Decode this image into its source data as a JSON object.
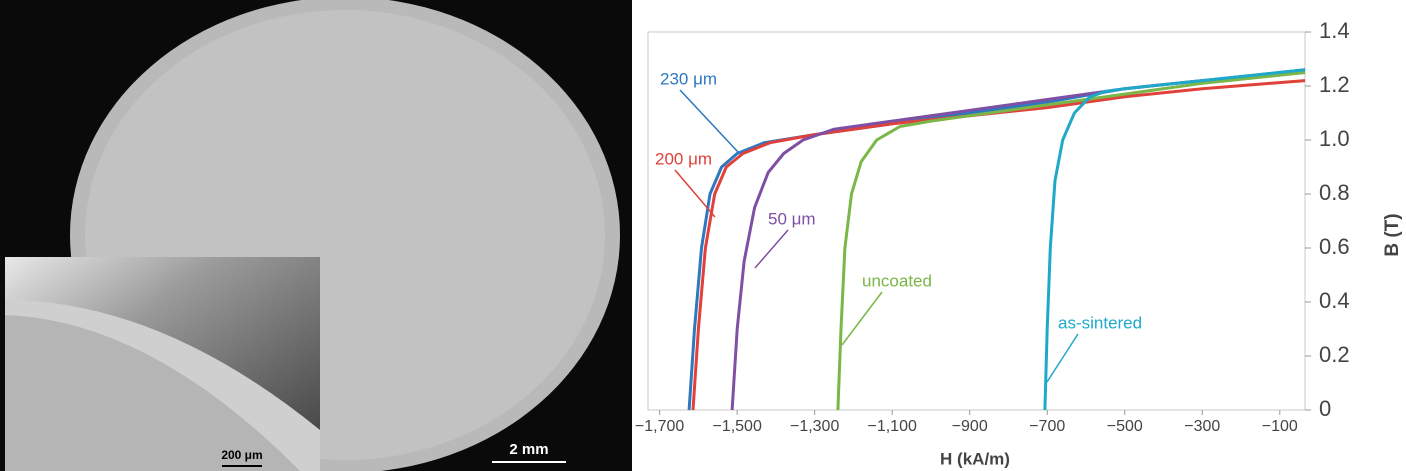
{
  "micrograph": {
    "scale_bar": "2 mm",
    "inset_scale_bar": "200 μm"
  },
  "chart_data": {
    "type": "line",
    "x_label": "H (kA/m)",
    "y_label": "B (T)",
    "xlim": [
      -1730,
      -35
    ],
    "ylim": [
      0,
      1.4
    ],
    "xticks": [
      {
        "value": -1700,
        "label": "−1,700"
      },
      {
        "value": -1500,
        "label": "−1,500"
      },
      {
        "value": -1300,
        "label": "−1,300"
      },
      {
        "value": -1100,
        "label": "−1,100"
      },
      {
        "value": -900,
        "label": "−900"
      },
      {
        "value": -700,
        "label": "−700"
      },
      {
        "value": -500,
        "label": "−500"
      },
      {
        "value": -300,
        "label": "−300"
      },
      {
        "value": -100,
        "label": "−100"
      }
    ],
    "yticks": [
      0,
      0.2,
      0.4,
      0.6,
      0.8,
      {
        "value": 1,
        "label": "1.0"
      },
      1.2,
      1.4
    ],
    "series": [
      {
        "name": "230 μm",
        "color": "#2e78c0",
        "x": [
          -1624,
          -1610,
          -1592,
          -1570,
          -1540,
          -1500,
          -1430,
          -1300,
          -1100,
          -900,
          -700,
          -500,
          -300,
          -35
        ],
        "values": [
          0,
          0.3,
          0.6,
          0.8,
          0.9,
          0.95,
          0.99,
          1.02,
          1.06,
          1.1,
          1.14,
          1.19,
          1.22,
          1.26
        ]
      },
      {
        "name": "200 μm",
        "color": "#e0413a",
        "x": [
          -1614,
          -1600,
          -1582,
          -1558,
          -1528,
          -1485,
          -1415,
          -1300,
          -1100,
          -900,
          -700,
          -500,
          -300,
          -35
        ],
        "values": [
          0,
          0.3,
          0.6,
          0.8,
          0.9,
          0.95,
          0.99,
          1.02,
          1.06,
          1.09,
          1.12,
          1.16,
          1.19,
          1.22
        ]
      },
      {
        "name": "50 μm",
        "color": "#7f4fa3",
        "x": [
          -1513,
          -1500,
          -1482,
          -1455,
          -1420,
          -1380,
          -1330,
          -1250,
          -1100,
          -900,
          -700,
          -500,
          -300,
          -35
        ],
        "values": [
          0,
          0.3,
          0.55,
          0.75,
          0.88,
          0.95,
          1.0,
          1.04,
          1.07,
          1.11,
          1.15,
          1.19,
          1.22,
          1.25
        ]
      },
      {
        "name": "uncoated",
        "color": "#7ab648",
        "x": [
          -1240,
          -1232,
          -1222,
          -1205,
          -1180,
          -1140,
          -1080,
          -1000,
          -900,
          -700,
          -500,
          -300,
          -35
        ],
        "values": [
          0,
          0.3,
          0.6,
          0.8,
          0.92,
          1.0,
          1.05,
          1.07,
          1.09,
          1.13,
          1.17,
          1.21,
          1.25
        ]
      },
      {
        "name": "as-sintered",
        "color": "#1fa9c9",
        "x": [
          -706,
          -700,
          -692,
          -680,
          -660,
          -630,
          -590,
          -550,
          -500,
          -300,
          -35
        ],
        "values": [
          0,
          0.3,
          0.6,
          0.85,
          1.0,
          1.1,
          1.16,
          1.18,
          1.19,
          1.22,
          1.26
        ]
      }
    ]
  }
}
